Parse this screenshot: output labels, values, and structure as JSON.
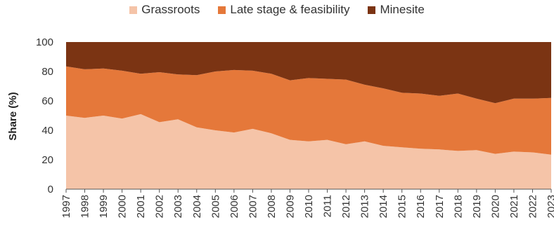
{
  "chart_data": {
    "type": "area",
    "stacked": true,
    "title": "",
    "xlabel": "",
    "ylabel": "Share (%)",
    "ylim": [
      0,
      100
    ],
    "yticks": [
      "0",
      "20",
      "40",
      "60",
      "80",
      "100"
    ],
    "x": [
      "1997",
      "1998",
      "1999",
      "2000",
      "2001",
      "2002",
      "2003",
      "2004",
      "2005",
      "2006",
      "2007",
      "2008",
      "2009",
      "2010",
      "2011",
      "2012",
      "2013",
      "2014",
      "2015",
      "2016",
      "2017",
      "2018",
      "2019",
      "2020",
      "2021",
      "2022",
      "2023"
    ],
    "legend_position": "top",
    "grid": false,
    "series": [
      {
        "name": "Grassroots",
        "color": "#f5c4a8",
        "values": [
          50,
          48.5,
          50,
          48,
          51,
          45.5,
          47.5,
          42,
          40,
          38.5,
          41,
          38,
          33.5,
          32.5,
          33.5,
          30.5,
          32.5,
          29.5,
          28.5,
          27.5,
          27,
          26,
          26.5,
          24,
          25.5,
          25,
          23.5
        ]
      },
      {
        "name": "Late stage & feasibility",
        "color": "#e5783a",
        "values": [
          33.5,
          33,
          32,
          32.5,
          27.5,
          34,
          30.5,
          35.5,
          40,
          42.5,
          39.5,
          40.5,
          40.5,
          43,
          41.5,
          44,
          38.5,
          39,
          37,
          37.5,
          36.5,
          39,
          35,
          34.5,
          36,
          36.5,
          38.5
        ]
      },
      {
        "name": "Minesite",
        "color": "#7b3413",
        "values": [
          16.5,
          18.5,
          18,
          19.5,
          21.5,
          20.5,
          22,
          22.5,
          20,
          19,
          19.5,
          21.5,
          26,
          24.5,
          25,
          25.5,
          29,
          31.5,
          34.5,
          35,
          36.5,
          35,
          38.5,
          41.5,
          38.5,
          38.5,
          38
        ]
      }
    ]
  }
}
